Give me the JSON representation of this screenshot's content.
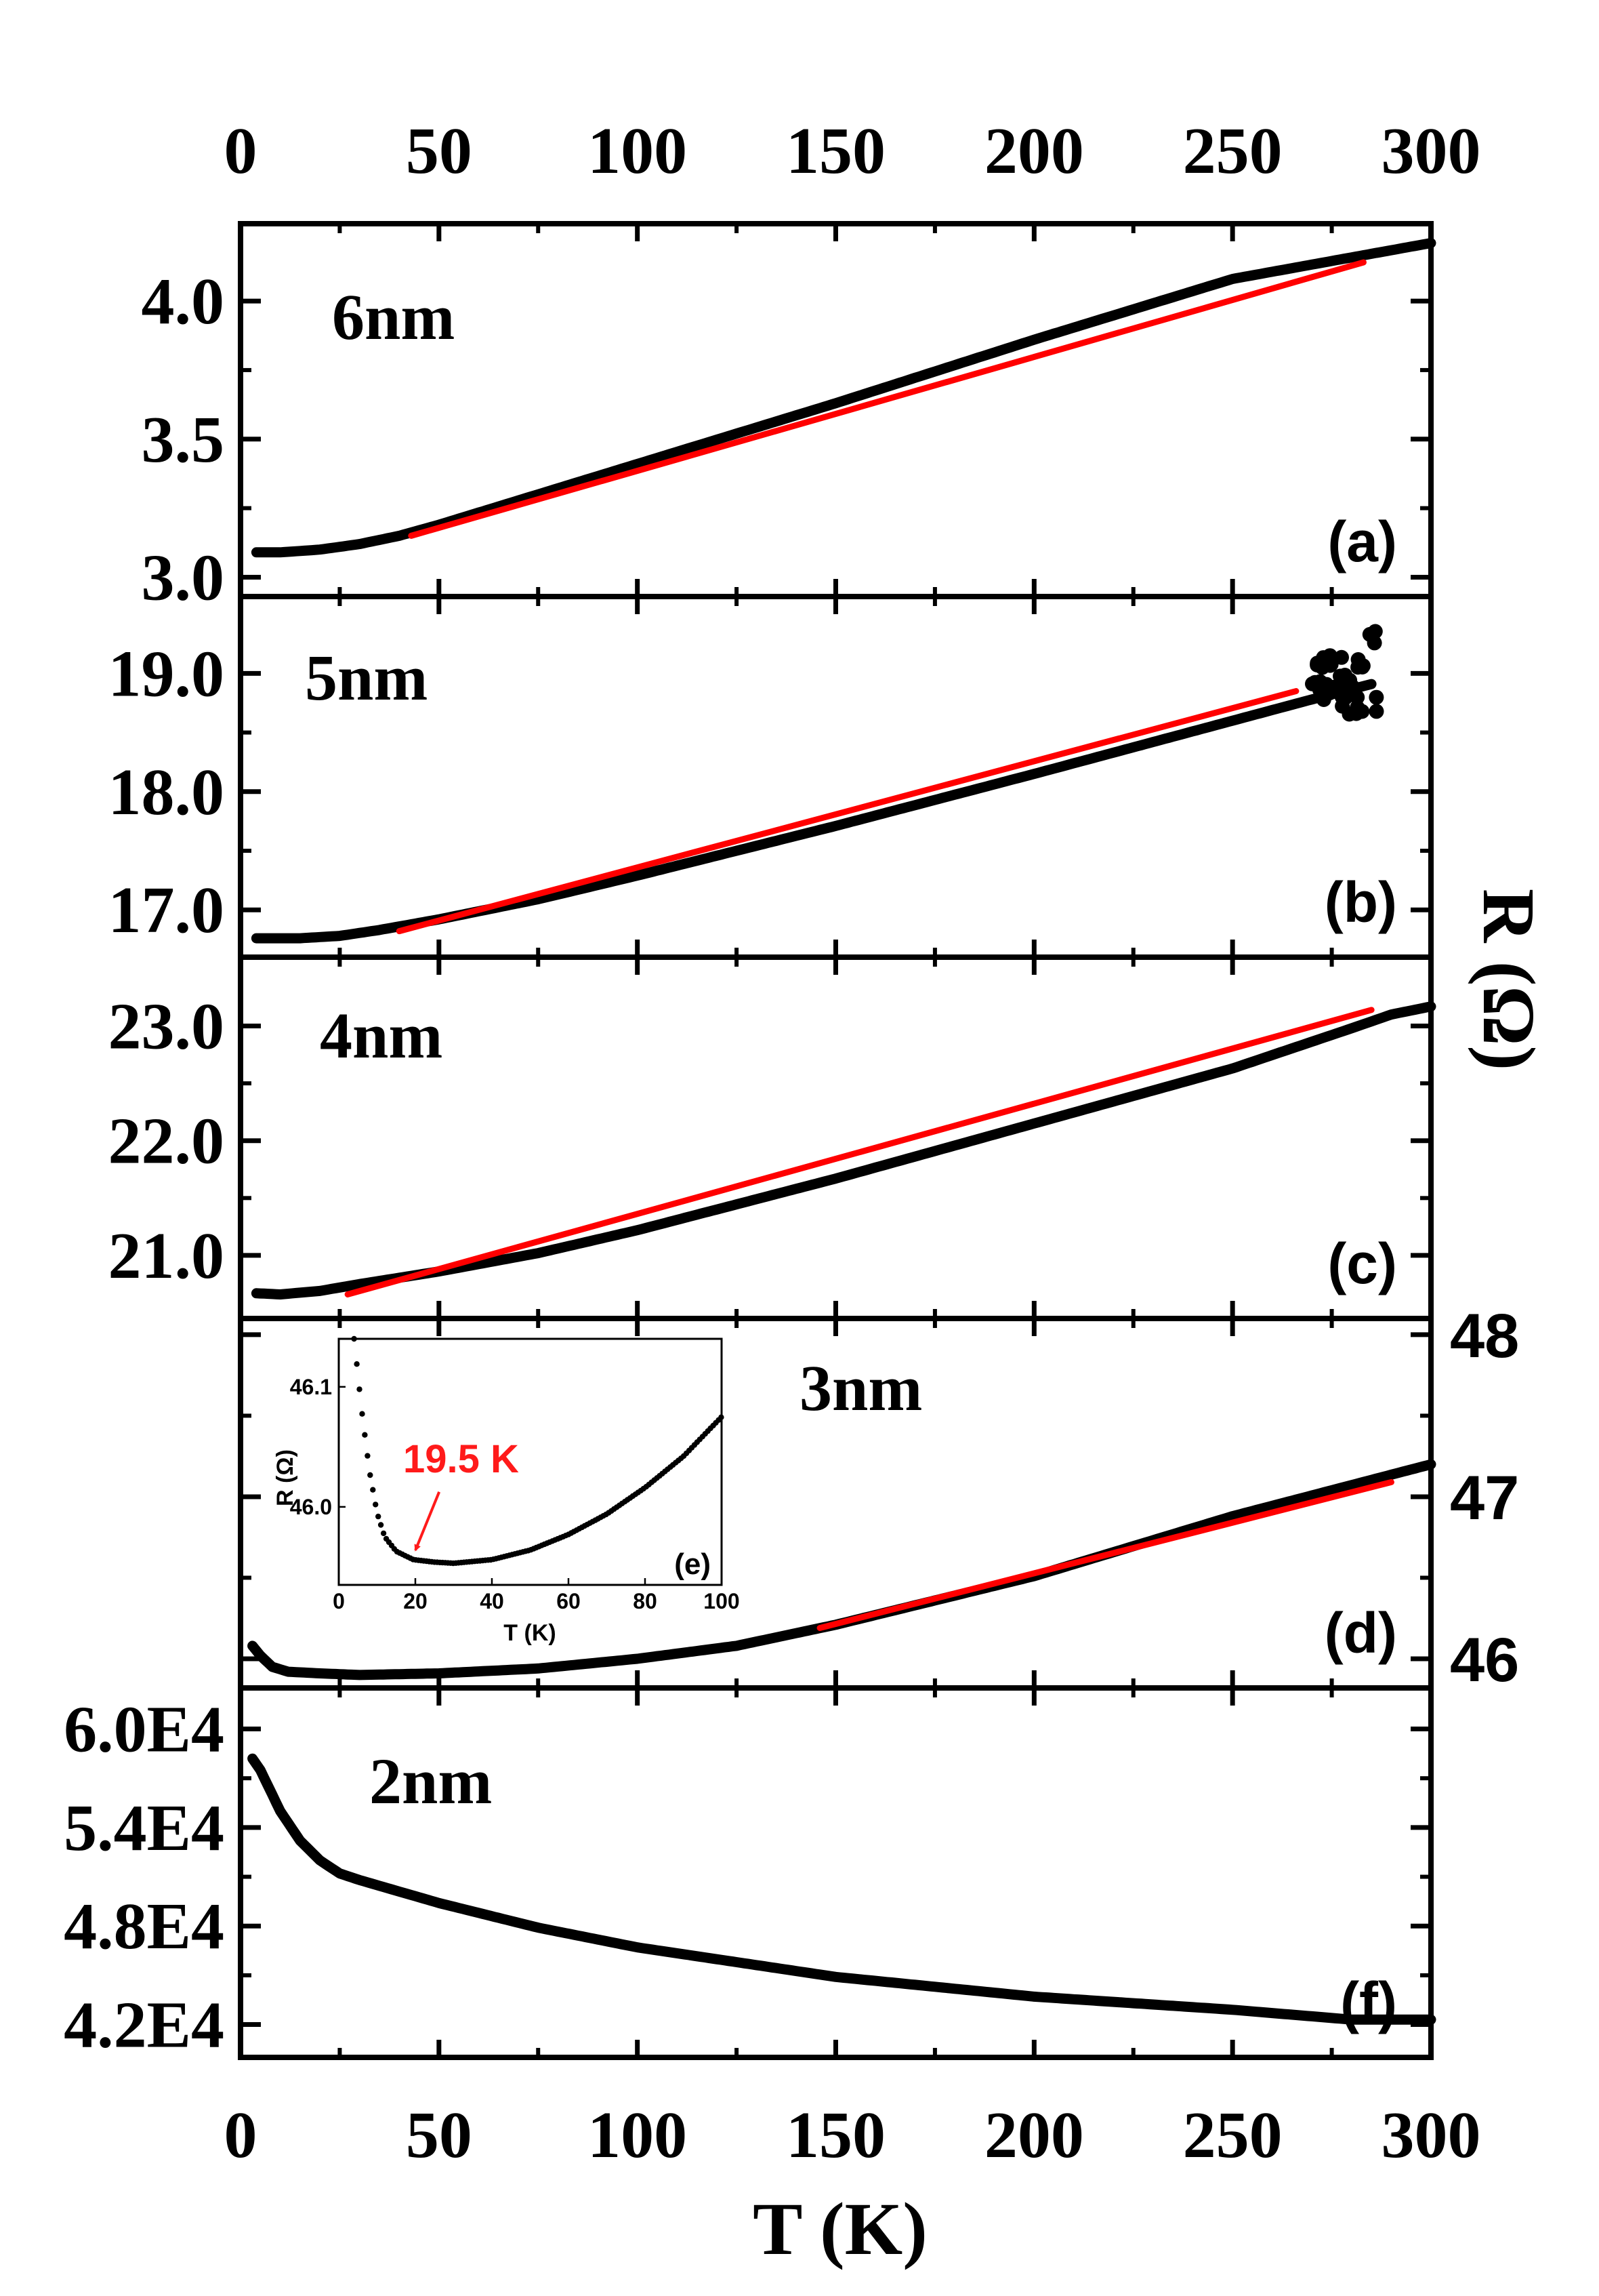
{
  "chart_data": {
    "type": "line",
    "x_axis": {
      "label": "T (K)",
      "range": [
        0,
        300
      ],
      "ticks": [
        "0",
        "50",
        "100",
        "150",
        "200",
        "250",
        "300"
      ]
    },
    "right_axis_label": "R (Ω)",
    "colors": {
      "data": "#000000",
      "fit": "#ff0000"
    },
    "panels": [
      {
        "id": "a",
        "letter": "(a)",
        "thickness": "6nm",
        "ylim": [
          2.93,
          4.28
        ],
        "ticks": [
          3.0,
          3.5,
          4.0
        ],
        "tick_labels": [
          "3.0",
          "3.5",
          "4.0"
        ],
        "tick_side": "left",
        "data": [
          [
            4,
            3.09
          ],
          [
            10,
            3.09
          ],
          [
            20,
            3.1
          ],
          [
            30,
            3.12
          ],
          [
            40,
            3.15
          ],
          [
            50,
            3.19
          ],
          [
            75,
            3.3
          ],
          [
            100,
            3.41
          ],
          [
            150,
            3.63
          ],
          [
            200,
            3.86
          ],
          [
            250,
            4.08
          ],
          [
            300,
            4.21
          ]
        ],
        "fit": [
          [
            43,
            3.15
          ],
          [
            283,
            4.14
          ]
        ],
        "noise": null
      },
      {
        "id": "b",
        "letter": "(b)",
        "thickness": "5nm",
        "ylim": [
          16.6,
          19.65
        ],
        "ticks": [
          17.0,
          18.0,
          19.0
        ],
        "tick_labels": [
          "17.0",
          "18.0",
          "19.0"
        ],
        "tick_side": "left",
        "data": [
          [
            4,
            16.76
          ],
          [
            15,
            16.76
          ],
          [
            25,
            16.78
          ],
          [
            35,
            16.83
          ],
          [
            50,
            16.92
          ],
          [
            75,
            17.09
          ],
          [
            100,
            17.29
          ],
          [
            150,
            17.71
          ],
          [
            200,
            18.15
          ],
          [
            250,
            18.6
          ],
          [
            270,
            18.78
          ],
          [
            285,
            18.91
          ]
        ],
        "fit": [
          [
            40,
            16.82
          ],
          [
            266,
            18.85
          ]
        ],
        "noise": {
          "t_start": 270,
          "t_end": 287,
          "center": 18.95,
          "spread": 0.45
        }
      },
      {
        "id": "c",
        "letter": "(c)",
        "thickness": "4nm",
        "ylim": [
          20.45,
          23.6
        ],
        "ticks": [
          21.0,
          22.0,
          23.0
        ],
        "tick_labels": [
          "21.0",
          "22.0",
          "23.0"
        ],
        "tick_side": "left",
        "data": [
          [
            4,
            20.67
          ],
          [
            10,
            20.66
          ],
          [
            20,
            20.69
          ],
          [
            30,
            20.75
          ],
          [
            50,
            20.86
          ],
          [
            75,
            21.02
          ],
          [
            100,
            21.22
          ],
          [
            150,
            21.67
          ],
          [
            200,
            22.15
          ],
          [
            250,
            22.63
          ],
          [
            280,
            22.98
          ],
          [
            290,
            23.1
          ],
          [
            300,
            23.17
          ]
        ],
        "fit": [
          [
            27,
            20.66
          ],
          [
            285,
            23.14
          ]
        ],
        "noise": null
      },
      {
        "id": "d",
        "letter": "(d)",
        "thickness": "3nm",
        "ylim": [
          45.82,
          48.1
        ],
        "ticks": [
          46,
          47,
          48
        ],
        "tick_labels": [
          "46",
          "47",
          "48"
        ],
        "tick_side": "right",
        "data": [
          [
            3,
            46.08
          ],
          [
            5,
            46.02
          ],
          [
            8,
            45.95
          ],
          [
            12,
            45.92
          ],
          [
            20,
            45.91
          ],
          [
            30,
            45.9
          ],
          [
            50,
            45.91
          ],
          [
            75,
            45.94
          ],
          [
            100,
            46.0
          ],
          [
            125,
            46.08
          ],
          [
            150,
            46.21
          ],
          [
            200,
            46.51
          ],
          [
            250,
            46.88
          ],
          [
            300,
            47.2
          ]
        ],
        "fit": [
          [
            146,
            46.19
          ],
          [
            290,
            47.09
          ]
        ],
        "noise": null
      },
      {
        "id": "f",
        "letter": "(f)",
        "thickness": "2nm",
        "ylim": [
          40000,
          62500
        ],
        "ticks": [
          42000,
          48000,
          54000,
          60000
        ],
        "tick_labels": [
          "4.2E4",
          "4.8E4",
          "5.4E4",
          "6.0E4"
        ],
        "tick_side": "left",
        "data": [
          [
            3,
            58200
          ],
          [
            5,
            57500
          ],
          [
            10,
            55000
          ],
          [
            15,
            53200
          ],
          [
            20,
            52000
          ],
          [
            25,
            51200
          ],
          [
            30,
            50800
          ],
          [
            50,
            49400
          ],
          [
            75,
            47900
          ],
          [
            100,
            46700
          ],
          [
            150,
            44900
          ],
          [
            200,
            43700
          ],
          [
            250,
            42900
          ],
          [
            280,
            42300
          ],
          [
            300,
            42300
          ]
        ],
        "fit": null,
        "noise": null
      }
    ],
    "inset": {
      "letter": "(e)",
      "xlabel": "T (K)",
      "ylabel": "R (Ω)",
      "xlim": [
        0,
        100
      ],
      "xticks": [
        "0",
        "20",
        "40",
        "60",
        "80",
        "100"
      ],
      "ylim": [
        45.935,
        46.14
      ],
      "yticks": [
        46.0,
        46.1
      ],
      "ytick_labels": [
        "46.0",
        "46.1"
      ],
      "data": [
        [
          4,
          46.14
        ],
        [
          5,
          46.11
        ],
        [
          6,
          46.08
        ],
        [
          8,
          46.03
        ],
        [
          10,
          45.995
        ],
        [
          12,
          45.975
        ],
        [
          15,
          45.963
        ],
        [
          19.5,
          45.956
        ],
        [
          25,
          45.954
        ],
        [
          30,
          45.953
        ],
        [
          40,
          45.956
        ],
        [
          50,
          45.964
        ],
        [
          60,
          45.977
        ],
        [
          70,
          45.994
        ],
        [
          80,
          46.016
        ],
        [
          90,
          46.042
        ],
        [
          100,
          46.075
        ]
      ],
      "annotation": {
        "text": "19.5 K",
        "at": [
          19.5,
          45.956
        ]
      }
    }
  }
}
